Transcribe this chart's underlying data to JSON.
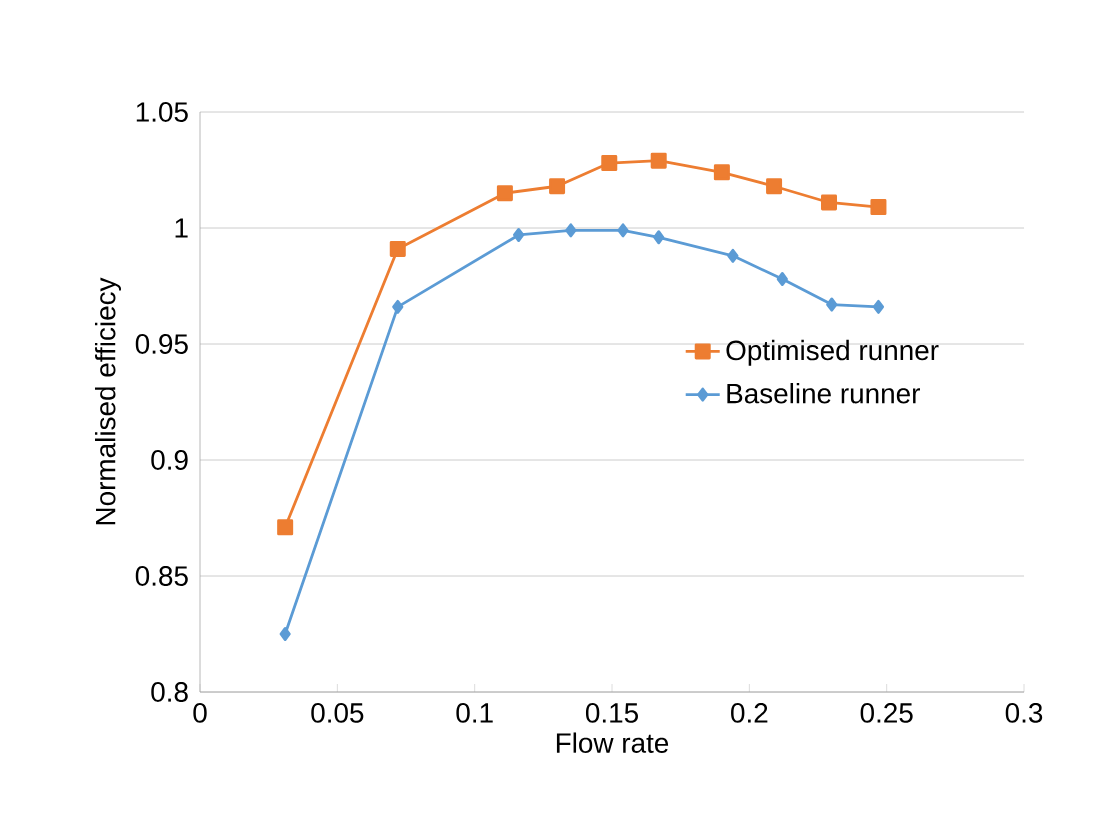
{
  "chart_data": {
    "type": "line",
    "xlabel": "Flow rate",
    "ylabel": "Normalised efficiecy",
    "xlim": [
      0,
      0.3
    ],
    "xticks": [
      0,
      0.05,
      0.1,
      0.15,
      0.2,
      0.25,
      0.3
    ],
    "ylim": [
      0.8,
      1.05
    ],
    "yticks": [
      0.8,
      0.85,
      0.9,
      0.95,
      1,
      1.05
    ],
    "grid": "y",
    "legend": "right",
    "line_style": "solid",
    "series": [
      {
        "name": "Optimised runner",
        "color": "#ed7d31",
        "marker": "square",
        "x": [
          0.031,
          0.072,
          0.111,
          0.13,
          0.149,
          0.167,
          0.19,
          0.209,
          0.229,
          0.247
        ],
        "values": [
          0.871,
          0.991,
          1.015,
          1.018,
          1.028,
          1.029,
          1.024,
          1.018,
          1.011,
          1.009
        ]
      },
      {
        "name": "Baseline runner",
        "color": "#5b9bd5",
        "marker": "diamond",
        "x": [
          0.031,
          0.072,
          0.116,
          0.135,
          0.154,
          0.167,
          0.194,
          0.212,
          0.23,
          0.247
        ],
        "values": [
          0.825,
          0.966,
          0.997,
          0.999,
          0.999,
          0.996,
          0.988,
          0.978,
          0.967,
          0.966
        ]
      }
    ]
  }
}
